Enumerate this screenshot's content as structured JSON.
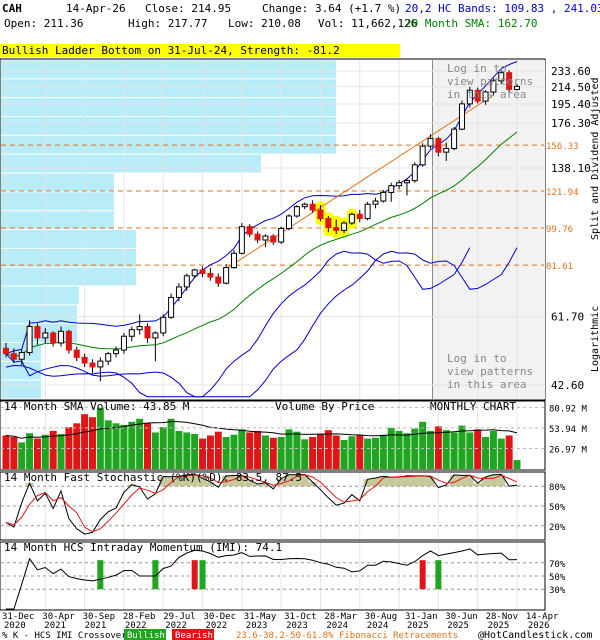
{
  "header": {
    "symbol": "CAH",
    "date": "14-Apr-26",
    "close": "Close: 214.95",
    "change": "Change: 3.64 (+1.7 %)",
    "open": "Open: 211.36",
    "high": "High: 217.77",
    "low": "Low: 210.08",
    "vol": "Vol: 11,662,126",
    "bands": "20,2 HC Bands: 109.83 , 241.03",
    "sma": "20 Month SMA: 162.70"
  },
  "colors": {
    "up": "#1fa51f",
    "down": "#e01515",
    "bands": "#0000cc",
    "sma": "#008000",
    "vbp": "#b8ecf8",
    "pattern": "#ffff00",
    "fib": "#e0701a",
    "shade": "#f2f2f2",
    "bg": "#ffffff"
  },
  "chart_data": {
    "type": "candlestick",
    "scale": "logarithmic",
    "pattern_label": "Bullish Ladder Bottom on 31-Jul-24, Strength: -81.2",
    "right_axis_label": "Split and Dividend Adjusted",
    "log_label": "Logarithmic",
    "chart_type_label": "MONTHLY CHART",
    "vbp_label": "Volume By Price",
    "login_text": [
      "Log in to",
      "view patterns",
      "in this area"
    ],
    "price_ticks": [
      233.6,
      214.5,
      195.4,
      176.3,
      138.1,
      61.7,
      42.6
    ],
    "fib_levels": [
      156.33,
      121.94,
      99.76,
      81.61
    ],
    "x_labels": [
      "31-Dec 2020",
      "30-Apr 2021",
      "30-Sep 2021",
      "28-Feb 2022",
      "29-Jul 2022",
      "30-Dec 2022",
      "31-May 2023",
      "31-Oct 2023",
      "28-Mar 2024",
      "30-Aug 2024",
      "31-Jan 2025",
      "30-Jun 2025",
      "28-Nov 2025",
      "14-Apr 2026"
    ],
    "volume_panel": {
      "label": "14 Month SMA Volume: 43.85 M",
      "ticks": [
        "80.92 M",
        "53.94 M",
        "26.97 M"
      ]
    },
    "stochastic_panel": {
      "label": "14 Month Fast Stochastic (%K)(%D): 83.5, 87.5",
      "ticks": [
        "80%",
        "50%",
        "20%"
      ]
    },
    "momentum_panel": {
      "label": "14 Month HCS Intraday Momentum (IMI): 74.1",
      "ticks": [
        "70%",
        "50%",
        "30%"
      ]
    },
    "footer": {
      "legend": "% K - HCS IMI Crossover:",
      "bullish": "Bullish",
      "bearish": "Bearish",
      "fib": "23.6-38.2-50-61.8% Fibonacci Retracements",
      "brand": "@HotCandlestick.com"
    },
    "candles": [
      {
        "o": 52.0,
        "h": 53.5,
        "l": 49.5,
        "c": 50.5,
        "v": 44
      },
      {
        "o": 50.5,
        "h": 52.0,
        "l": 48.0,
        "c": 49.0,
        "v": 42
      },
      {
        "o": 49.0,
        "h": 51.5,
        "l": 47.5,
        "c": 50.8,
        "v": 35
      },
      {
        "o": 50.8,
        "h": 60.5,
        "l": 50.0,
        "c": 58.5,
        "v": 47
      },
      {
        "o": 58.5,
        "h": 59.5,
        "l": 53.0,
        "c": 55.0,
        "v": 40
      },
      {
        "o": 55.0,
        "h": 58.0,
        "l": 53.5,
        "c": 56.5,
        "v": 45
      },
      {
        "o": 56.5,
        "h": 57.0,
        "l": 52.5,
        "c": 53.5,
        "v": 50
      },
      {
        "o": 53.5,
        "h": 58.5,
        "l": 52.5,
        "c": 57.0,
        "v": 46
      },
      {
        "o": 57.0,
        "h": 57.5,
        "l": 50.5,
        "c": 51.5,
        "v": 55
      },
      {
        "o": 51.5,
        "h": 52.5,
        "l": 48.5,
        "c": 49.5,
        "v": 60
      },
      {
        "o": 49.5,
        "h": 50.5,
        "l": 47.0,
        "c": 48.0,
        "v": 72
      },
      {
        "o": 48.0,
        "h": 49.0,
        "l": 45.5,
        "c": 47.0,
        "v": 68
      },
      {
        "o": 47.0,
        "h": 49.5,
        "l": 43.5,
        "c": 48.5,
        "v": 80
      },
      {
        "o": 48.5,
        "h": 51.0,
        "l": 47.5,
        "c": 50.5,
        "v": 64
      },
      {
        "o": 50.5,
        "h": 52.5,
        "l": 49.5,
        "c": 51.5,
        "v": 60
      },
      {
        "o": 51.5,
        "h": 56.5,
        "l": 50.5,
        "c": 55.5,
        "v": 58
      },
      {
        "o": 55.5,
        "h": 58.5,
        "l": 54.0,
        "c": 57.5,
        "v": 62
      },
      {
        "o": 57.5,
        "h": 62.5,
        "l": 56.0,
        "c": 58.5,
        "v": 66
      },
      {
        "o": 58.5,
        "h": 59.5,
        "l": 53.5,
        "c": 55.0,
        "v": 60
      },
      {
        "o": 55.0,
        "h": 57.0,
        "l": 48.5,
        "c": 56.5,
        "v": 48
      },
      {
        "o": 56.5,
        "h": 62.5,
        "l": 55.5,
        "c": 61.5,
        "v": 55
      },
      {
        "o": 61.5,
        "h": 70.0,
        "l": 61.0,
        "c": 68.5,
        "v": 66
      },
      {
        "o": 68.5,
        "h": 74.0,
        "l": 67.0,
        "c": 72.5,
        "v": 50
      },
      {
        "o": 72.5,
        "h": 78.0,
        "l": 71.0,
        "c": 77.0,
        "v": 48
      },
      {
        "o": 77.0,
        "h": 80.0,
        "l": 76.0,
        "c": 79.5,
        "v": 46
      },
      {
        "o": 79.5,
        "h": 81.0,
        "l": 76.5,
        "c": 78.0,
        "v": 40
      },
      {
        "o": 78.0,
        "h": 80.5,
        "l": 75.0,
        "c": 76.5,
        "v": 44
      },
      {
        "o": 76.5,
        "h": 78.0,
        "l": 72.5,
        "c": 74.0,
        "v": 49
      },
      {
        "o": 74.0,
        "h": 82.0,
        "l": 73.5,
        "c": 80.5,
        "v": 42
      },
      {
        "o": 80.5,
        "h": 88.5,
        "l": 80.0,
        "c": 87.0,
        "v": 45
      },
      {
        "o": 87.0,
        "h": 102.5,
        "l": 86.5,
        "c": 100.5,
        "v": 52
      },
      {
        "o": 100.5,
        "h": 102.0,
        "l": 95.0,
        "c": 96.5,
        "v": 48
      },
      {
        "o": 96.5,
        "h": 98.0,
        "l": 92.0,
        "c": 93.5,
        "v": 50
      },
      {
        "o": 93.5,
        "h": 96.5,
        "l": 90.0,
        "c": 95.5,
        "v": 44
      },
      {
        "o": 95.5,
        "h": 96.5,
        "l": 91.0,
        "c": 92.5,
        "v": 41
      },
      {
        "o": 92.5,
        "h": 100.5,
        "l": 91.5,
        "c": 99.5,
        "v": 42
      },
      {
        "o": 99.5,
        "h": 107.5,
        "l": 98.5,
        "c": 106.5,
        "v": 52
      },
      {
        "o": 106.5,
        "h": 113.0,
        "l": 105.5,
        "c": 112.0,
        "v": 49
      },
      {
        "o": 112.0,
        "h": 114.5,
        "l": 110.5,
        "c": 113.5,
        "v": 39
      },
      {
        "o": 113.5,
        "h": 116.0,
        "l": 108.5,
        "c": 110.0,
        "v": 42
      },
      {
        "o": 110.0,
        "h": 113.0,
        "l": 103.5,
        "c": 105.0,
        "v": 46
      },
      {
        "o": 105.0,
        "h": 106.5,
        "l": 97.5,
        "c": 100.0,
        "v": 51
      },
      {
        "o": 100.0,
        "h": 104.5,
        "l": 96.5,
        "c": 98.5,
        "v": 44
      },
      {
        "o": 98.5,
        "h": 103.5,
        "l": 97.0,
        "c": 102.5,
        "v": 38
      },
      {
        "o": 102.5,
        "h": 108.5,
        "l": 101.5,
        "c": 107.5,
        "v": 43
      },
      {
        "o": 107.5,
        "h": 110.0,
        "l": 103.0,
        "c": 105.0,
        "v": 44
      },
      {
        "o": 105.0,
        "h": 115.0,
        "l": 104.0,
        "c": 113.5,
        "v": 40
      },
      {
        "o": 113.5,
        "h": 117.5,
        "l": 111.0,
        "c": 115.5,
        "v": 41
      },
      {
        "o": 115.5,
        "h": 122.5,
        "l": 114.5,
        "c": 121.0,
        "v": 45
      },
      {
        "o": 121.0,
        "h": 127.5,
        "l": 115.0,
        "c": 125.5,
        "v": 54
      },
      {
        "o": 125.5,
        "h": 129.5,
        "l": 123.0,
        "c": 127.5,
        "v": 50
      },
      {
        "o": 127.5,
        "h": 130.5,
        "l": 119.0,
        "c": 129.0,
        "v": 47
      },
      {
        "o": 129.0,
        "h": 142.5,
        "l": 127.5,
        "c": 140.5,
        "v": 53
      },
      {
        "o": 140.5,
        "h": 158.0,
        "l": 139.0,
        "c": 155.5,
        "v": 62
      },
      {
        "o": 155.5,
        "h": 166.0,
        "l": 153.5,
        "c": 162.0,
        "v": 50
      },
      {
        "o": 162.0,
        "h": 163.5,
        "l": 147.0,
        "c": 150.5,
        "v": 56
      },
      {
        "o": 150.5,
        "h": 158.5,
        "l": 143.5,
        "c": 153.5,
        "v": 51
      },
      {
        "o": 153.5,
        "h": 172.5,
        "l": 152.0,
        "c": 170.5,
        "v": 48
      },
      {
        "o": 170.5,
        "h": 199.0,
        "l": 169.5,
        "c": 195.5,
        "v": 57
      },
      {
        "o": 195.5,
        "h": 214.5,
        "l": 191.5,
        "c": 210.5,
        "v": 48
      },
      {
        "o": 210.5,
        "h": 213.5,
        "l": 196.0,
        "c": 198.5,
        "v": 52
      },
      {
        "o": 198.5,
        "h": 210.5,
        "l": 194.5,
        "c": 208.5,
        "v": 42
      },
      {
        "o": 208.5,
        "h": 224.5,
        "l": 205.0,
        "c": 221.5,
        "v": 50
      },
      {
        "o": 221.5,
        "h": 234.0,
        "l": 217.5,
        "c": 231.5,
        "v": 40
      },
      {
        "o": 231.5,
        "h": 234.5,
        "l": 207.5,
        "c": 211.5,
        "v": 44
      },
      {
        "o": 211.36,
        "h": 217.77,
        "l": 210.08,
        "c": 214.95,
        "v": 11.7
      }
    ]
  }
}
